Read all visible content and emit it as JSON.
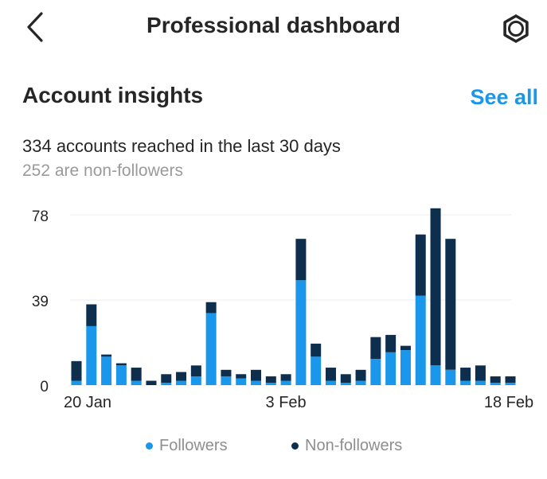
{
  "header": {
    "title": "Professional dashboard",
    "back_icon": "chevron-left-icon",
    "settings_icon": "gear-icon"
  },
  "insights": {
    "title": "Account insights",
    "see_all": "See all",
    "reach_text": "334 accounts reached in the last 30 days",
    "nonfollowers_text": "252 are non-followers"
  },
  "colors": {
    "followers": "#1a96ea",
    "non_followers": "#0d2e4c",
    "accent": "#1a96ea"
  },
  "chart_data": {
    "type": "bar",
    "stacked": true,
    "y_ticks": [
      "78",
      "39",
      "0"
    ],
    "ylim": [
      0,
      78
    ],
    "x_ticks": [
      {
        "index": 1,
        "label": "20 Jan"
      },
      {
        "index": 15,
        "label": "3 Feb"
      },
      {
        "index": 30,
        "label": "18 Feb"
      }
    ],
    "grid": true,
    "legend_position": "bottom",
    "series": [
      {
        "name": "Followers",
        "values": [
          2,
          27,
          13,
          9,
          2,
          0,
          1,
          2,
          4,
          33,
          4,
          3,
          2,
          1,
          2,
          48,
          13,
          2,
          1,
          2,
          12,
          15,
          16,
          41,
          9,
          7,
          2,
          2,
          1,
          1
        ]
      },
      {
        "name": "Non-followers",
        "values": [
          9,
          10,
          1,
          1,
          6,
          2,
          4,
          4,
          5,
          5,
          3,
          2,
          5,
          3,
          3,
          19,
          6,
          6,
          4,
          5,
          10,
          8,
          2,
          28,
          72,
          60,
          6,
          7,
          3,
          3
        ]
      }
    ]
  }
}
